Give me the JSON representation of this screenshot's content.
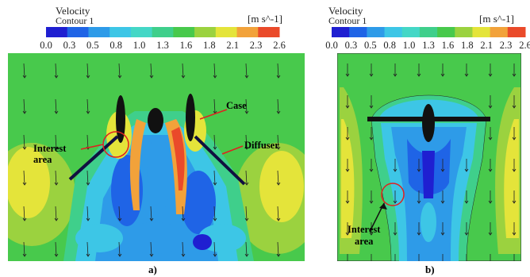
{
  "legend": {
    "title": "Velocity",
    "subtitle": "Contour 1",
    "unit": "[m s^-1]",
    "ticks": [
      "0.0",
      "0.3",
      "0.5",
      "0.8",
      "1.0",
      "1.3",
      "1.6",
      "1.8",
      "2.1",
      "2.3",
      "2.6"
    ],
    "colors": [
      "#1f1fd1",
      "#1f64e6",
      "#2e9be8",
      "#3dc6e6",
      "#44d7c6",
      "#3fcf8b",
      "#48c94c",
      "#9bd23f",
      "#e4e43a",
      "#f2a23a",
      "#ea4a2a"
    ]
  },
  "panel_a": {
    "caption": "a)",
    "labels": {
      "case": "Case",
      "diffuser": "Diffuser",
      "interest": "Interest\narea"
    }
  },
  "panel_b": {
    "caption": "b)",
    "labels": {
      "interest": "Interest\narea"
    }
  }
}
